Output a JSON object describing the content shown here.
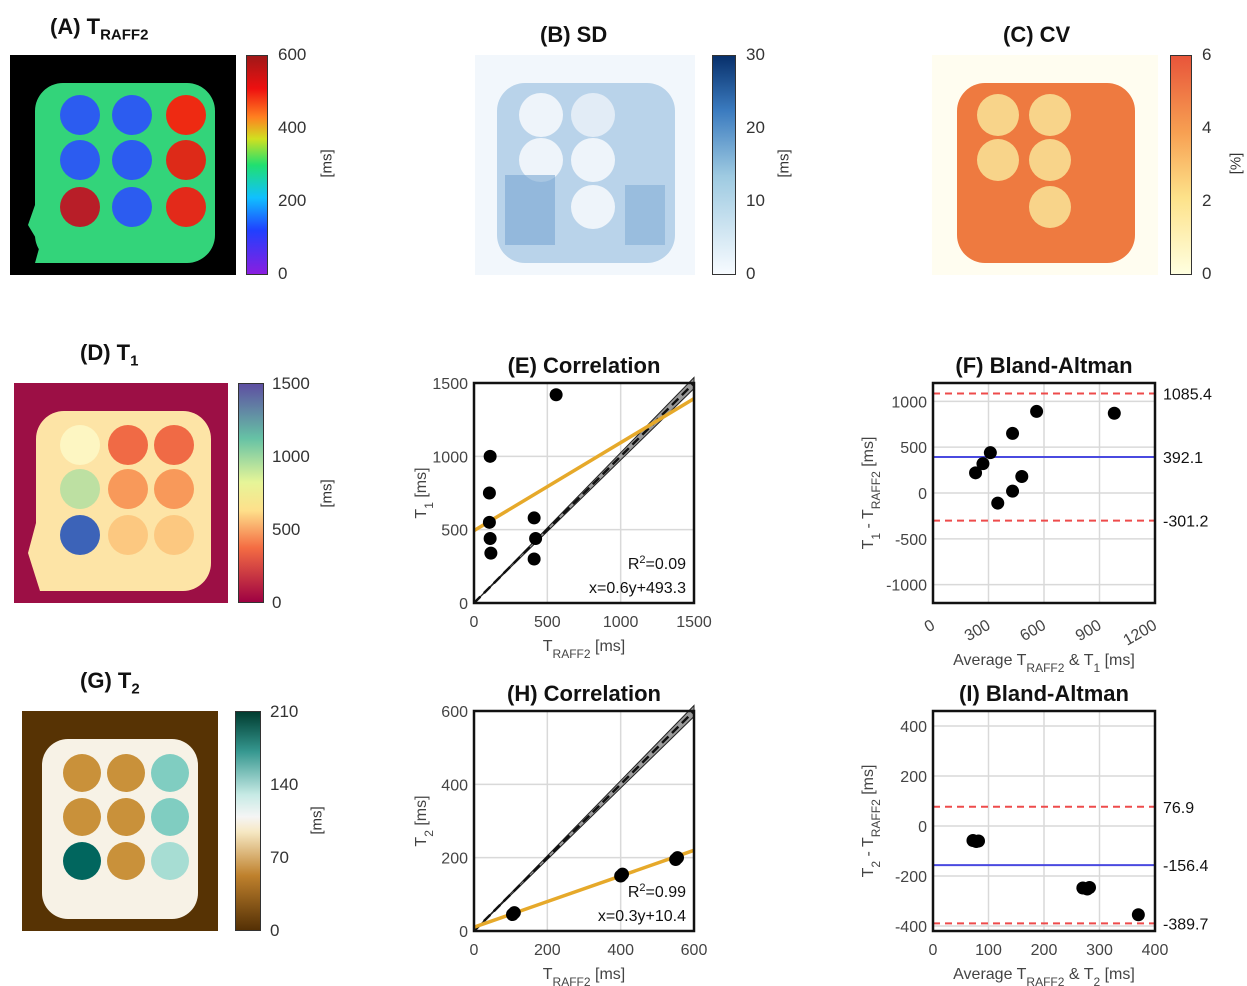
{
  "panels": {
    "A": {
      "label": "(A) T",
      "sub": "RAFF2",
      "ticks": [
        "600",
        "400",
        "200",
        "0"
      ],
      "unit": "[ms]"
    },
    "B": {
      "label": "(B) SD",
      "ticks": [
        "30",
        "20",
        "10",
        "0"
      ],
      "unit": "[ms]"
    },
    "C": {
      "label": "(C) CV",
      "ticks": [
        "6",
        "4",
        "2",
        "0"
      ],
      "unit": "[%]"
    },
    "D": {
      "label": "(D) T",
      "sub": "1",
      "ticks": [
        "1500",
        "1000",
        "500",
        "0"
      ],
      "unit": "[ms]"
    },
    "G": {
      "label": "(G) T",
      "sub": "2",
      "ticks": [
        "210",
        "140",
        "70",
        "0"
      ],
      "unit": "[ms]"
    }
  },
  "colors": {
    "fit": "#e6a92a",
    "mean": "#4a4ae0",
    "loa": "#ee4b4b",
    "grid": "#d9d9d9"
  },
  "chart_data": [
    {
      "id": "E",
      "type": "scatter",
      "title": "(E) Correlation",
      "xlabel_main": "T",
      "xlabel_sub": "RAFF2",
      "xlabel_unit": " [ms]",
      "ylabel_main": "T",
      "ylabel_sub": "1",
      "ylabel_unit": " [ms]",
      "xlim": [
        0,
        1500
      ],
      "ylim": [
        0,
        1500
      ],
      "xticks": [
        0,
        500,
        1000,
        1500
      ],
      "yticks": [
        0,
        500,
        1000,
        1500
      ],
      "points": [
        [
          110,
          1000
        ],
        [
          105,
          750
        ],
        [
          105,
          550
        ],
        [
          110,
          440
        ],
        [
          115,
          340
        ],
        [
          410,
          580
        ],
        [
          420,
          440
        ],
        [
          410,
          300
        ],
        [
          560,
          1420
        ]
      ],
      "fit": [
        [
          0,
          493.3
        ],
        [
          1500,
          1393.3
        ]
      ],
      "r2_label": "R",
      "r2_sup": "2",
      "r2_value": "=0.09",
      "eq": "x=0.6y+493.3",
      "grid": true
    },
    {
      "id": "F",
      "type": "scatter",
      "title": "(F) Bland-Altman",
      "xlabel_main": "Average T",
      "xlabel_sub": "RAFF2",
      "xlabel_mid": " & T",
      "xlabel_sub2": "1",
      "xlabel_unit": " [ms]",
      "ylabel_main": "T",
      "ylabel_sub": "1",
      "ylabel_mid": " - T",
      "ylabel_sub2": "RAFF2",
      "ylabel_unit": " [ms]",
      "xlim": [
        0,
        1200
      ],
      "ylim": [
        -1200,
        1200
      ],
      "xticks": [
        0,
        300,
        600,
        900,
        1200
      ],
      "yticks": [
        -1000,
        -500,
        0,
        500,
        1000
      ],
      "points": [
        [
          230,
          220
        ],
        [
          270,
          320
        ],
        [
          310,
          440
        ],
        [
          350,
          -110
        ],
        [
          430,
          650
        ],
        [
          430,
          20
        ],
        [
          480,
          180
        ],
        [
          560,
          890
        ],
        [
          980,
          870
        ]
      ],
      "mean": 392.1,
      "upper": 1085.4,
      "lower": -301.2,
      "mean_label": "392.1",
      "upper_label": "1085.4",
      "lower_label": "-301.2",
      "grid": true
    },
    {
      "id": "H",
      "type": "scatter",
      "title": "(H) Correlation",
      "xlabel_main": "T",
      "xlabel_sub": "RAFF2",
      "xlabel_unit": " [ms]",
      "ylabel_main": "T",
      "ylabel_sub": "2",
      "ylabel_unit": " [ms]",
      "xlim": [
        0,
        600
      ],
      "ylim": [
        0,
        600
      ],
      "xticks": [
        0,
        200,
        400,
        600
      ],
      "yticks": [
        0,
        200,
        400,
        600
      ],
      "points": [
        [
          105,
          45
        ],
        [
          110,
          50
        ],
        [
          400,
          150
        ],
        [
          405,
          155
        ],
        [
          550,
          195
        ],
        [
          555,
          200
        ]
      ],
      "fit": [
        [
          0,
          10.4
        ],
        [
          600,
          220
        ]
      ],
      "r2_label": "R",
      "r2_sup": "2",
      "r2_value": "=0.99",
      "eq": "x=0.3y+10.4",
      "grid": true
    },
    {
      "id": "I",
      "type": "scatter",
      "title": "(I) Bland-Altman",
      "xlabel_main": "Average T",
      "xlabel_sub": "RAFF2",
      "xlabel_mid": " & T",
      "xlabel_sub2": "2",
      "xlabel_unit": " [ms]",
      "ylabel_main": "T",
      "ylabel_sub": "2",
      "ylabel_mid": " - T",
      "ylabel_sub2": "RAFF2",
      "ylabel_unit": " [ms]",
      "xlim": [
        0,
        400
      ],
      "ylim": [
        -420,
        460
      ],
      "xticks": [
        0,
        100,
        200,
        300,
        400
      ],
      "yticks": [
        -400,
        -200,
        0,
        200,
        400
      ],
      "points": [
        [
          72,
          -58
        ],
        [
          78,
          -62
        ],
        [
          82,
          -60
        ],
        [
          270,
          -248
        ],
        [
          278,
          -252
        ],
        [
          282,
          -246
        ],
        [
          370,
          -355
        ]
      ],
      "mean": -156.4,
      "upper": 76.9,
      "lower": -389.7,
      "mean_label": "-156.4",
      "upper_label": "76.9",
      "lower_label": "-389.7",
      "grid": true
    }
  ]
}
